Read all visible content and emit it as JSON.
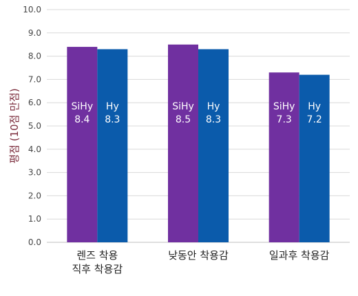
{
  "chart_data": {
    "type": "bar",
    "categories": [
      [
        "렌즈 착용",
        "직후 착용감"
      ],
      [
        "낮동안 착용감"
      ],
      [
        "일과후 착용감"
      ]
    ],
    "series": [
      {
        "name": "SiHy",
        "values": [
          8.4,
          8.5,
          7.3
        ],
        "color": "#7030a0"
      },
      {
        "name": "Hy",
        "values": [
          8.3,
          8.3,
          7.2
        ],
        "color": "#0b5bab"
      }
    ],
    "ylabel": "평점 (10점 만점)",
    "xlabel": "",
    "title": "",
    "ylim": [
      0,
      10
    ],
    "yticks": [
      "0.0",
      "1.0",
      "2.0",
      "3.0",
      "4.0",
      "5.0",
      "6.0",
      "7.0",
      "8.0",
      "9.0",
      "10.0"
    ],
    "grid": true,
    "legend": "none"
  }
}
